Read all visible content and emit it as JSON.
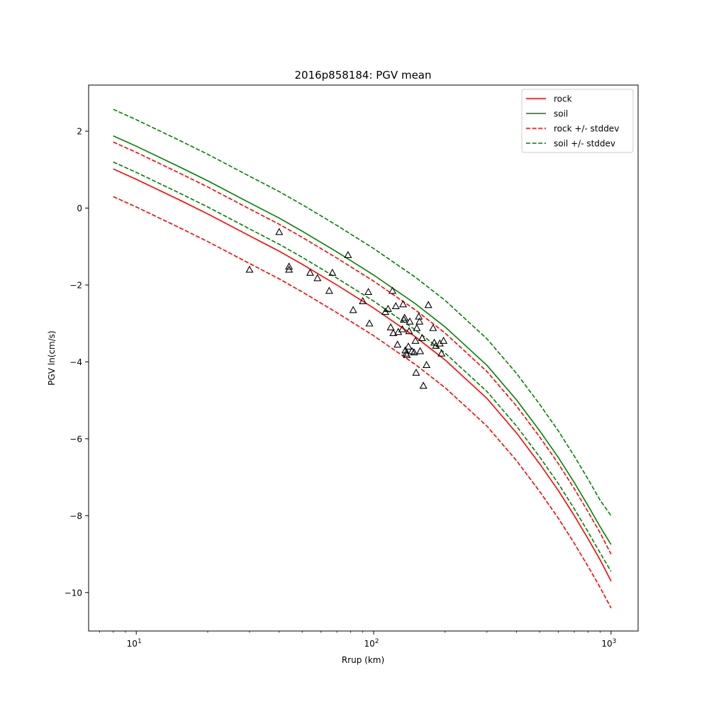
{
  "chart_data": {
    "type": "line",
    "title": "2016p858184: PGV mean",
    "xlabel": "Rrup (km)",
    "ylabel": "PGV ln(cm/s)",
    "xscale": "log",
    "xlim": [
      6.3,
      1300
    ],
    "ylim": [
      -11.0,
      3.2
    ],
    "xticks": [
      {
        "value": 10,
        "base": "10",
        "exp": "1"
      },
      {
        "value": 100,
        "base": "10",
        "exp": "2"
      },
      {
        "value": 1000,
        "base": "10",
        "exp": "3"
      }
    ],
    "yticks": [
      {
        "value": 2,
        "label": "2"
      },
      {
        "value": 0,
        "label": "0"
      },
      {
        "value": -2,
        "label": "−2"
      },
      {
        "value": -4,
        "label": "−4"
      },
      {
        "value": -6,
        "label": "−6"
      },
      {
        "value": -8,
        "label": "−8"
      },
      {
        "value": -10,
        "label": "−10"
      }
    ],
    "grid": false,
    "legend_position": "top-right",
    "x": [
      8,
      10,
      15,
      20,
      30,
      40,
      50,
      70,
      100,
      150,
      200,
      300,
      400,
      500,
      600,
      700,
      800,
      900,
      1000
    ],
    "series": [
      {
        "name": "rock",
        "color": "#ff0000",
        "dash": false,
        "values": [
          1.02,
          0.75,
          0.23,
          -0.15,
          -0.72,
          -1.12,
          -1.46,
          -2.0,
          -2.6,
          -3.35,
          -3.95,
          -4.95,
          -5.85,
          -6.65,
          -7.35,
          -8.0,
          -8.6,
          -9.15,
          -9.7
        ]
      },
      {
        "name": "soil",
        "color": "#008000",
        "dash": false,
        "values": [
          1.88,
          1.61,
          1.09,
          0.71,
          0.14,
          -0.26,
          -0.6,
          -1.14,
          -1.74,
          -2.49,
          -3.09,
          -4.09,
          -4.99,
          -5.79,
          -6.49,
          -7.14,
          -7.74,
          -8.29,
          -8.75
        ]
      },
      {
        "name": "rock +/- stddev",
        "color": "#ff0000",
        "dash": true,
        "values": [
          1.72,
          1.45,
          0.93,
          0.55,
          -0.02,
          -0.42,
          -0.76,
          -1.3,
          -1.9,
          -2.65,
          -3.25,
          -4.25,
          -5.15,
          -5.95,
          -6.65,
          -7.3,
          -7.9,
          -8.45,
          -9.0
        ]
      },
      {
        "name": "",
        "color": "#ff0000",
        "dash": true,
        "values": [
          0.3,
          0.03,
          -0.49,
          -0.87,
          -1.44,
          -1.84,
          -2.18,
          -2.72,
          -3.32,
          -4.07,
          -4.67,
          -5.67,
          -6.57,
          -7.37,
          -8.07,
          -8.72,
          -9.32,
          -9.87,
          -10.4
        ]
      },
      {
        "name": "soil +/- stddev",
        "color": "#008000",
        "dash": true,
        "values": [
          2.57,
          2.3,
          1.78,
          1.4,
          0.83,
          0.43,
          0.09,
          -0.45,
          -1.05,
          -1.8,
          -2.4,
          -3.4,
          -4.3,
          -5.1,
          -5.8,
          -6.45,
          -7.05,
          -7.6,
          -8.0
        ]
      },
      {
        "name": "",
        "color": "#008000",
        "dash": true,
        "values": [
          1.2,
          0.93,
          0.41,
          0.03,
          -0.54,
          -0.94,
          -1.28,
          -1.82,
          -2.42,
          -3.17,
          -3.77,
          -4.77,
          -5.67,
          -6.47,
          -7.17,
          -7.82,
          -8.42,
          -8.97,
          -9.45
        ]
      }
    ],
    "observations": [
      [
        30,
        -1.6
      ],
      [
        40,
        -0.62
      ],
      [
        44,
        -1.52
      ],
      [
        44,
        -1.6
      ],
      [
        54,
        -1.68
      ],
      [
        58,
        -1.82
      ],
      [
        65,
        -2.15
      ],
      [
        67,
        -1.68
      ],
      [
        78,
        -1.22
      ],
      [
        82,
        -2.65
      ],
      [
        90,
        -2.42
      ],
      [
        95,
        -2.18
      ],
      [
        96,
        -3.0
      ],
      [
        112,
        -2.7
      ],
      [
        115,
        -2.62
      ],
      [
        118,
        -3.1
      ],
      [
        120,
        -2.15
      ],
      [
        121,
        -3.25
      ],
      [
        124,
        -2.55
      ],
      [
        126,
        -3.55
      ],
      [
        127,
        -3.22
      ],
      [
        132,
        -3.15
      ],
      [
        133,
        -2.5
      ],
      [
        134,
        -2.9
      ],
      [
        135,
        -2.85
      ],
      [
        136,
        -3.7
      ],
      [
        137,
        -3.78
      ],
      [
        138,
        -3.82
      ],
      [
        140,
        -3.6
      ],
      [
        141,
        -3.2
      ],
      [
        142,
        -2.95
      ],
      [
        145,
        -3.72
      ],
      [
        148,
        -3.75
      ],
      [
        150,
        -3.45
      ],
      [
        151,
        -4.28
      ],
      [
        152,
        -3.12
      ],
      [
        155,
        -2.82
      ],
      [
        156,
        -2.95
      ],
      [
        157,
        -3.72
      ],
      [
        160,
        -3.38
      ],
      [
        162,
        -4.62
      ],
      [
        167,
        -4.08
      ],
      [
        170,
        -2.52
      ],
      [
        178,
        -3.12
      ],
      [
        180,
        -3.5
      ],
      [
        183,
        -3.58
      ],
      [
        190,
        -3.52
      ],
      [
        193,
        -3.78
      ],
      [
        197,
        -3.45
      ]
    ]
  }
}
